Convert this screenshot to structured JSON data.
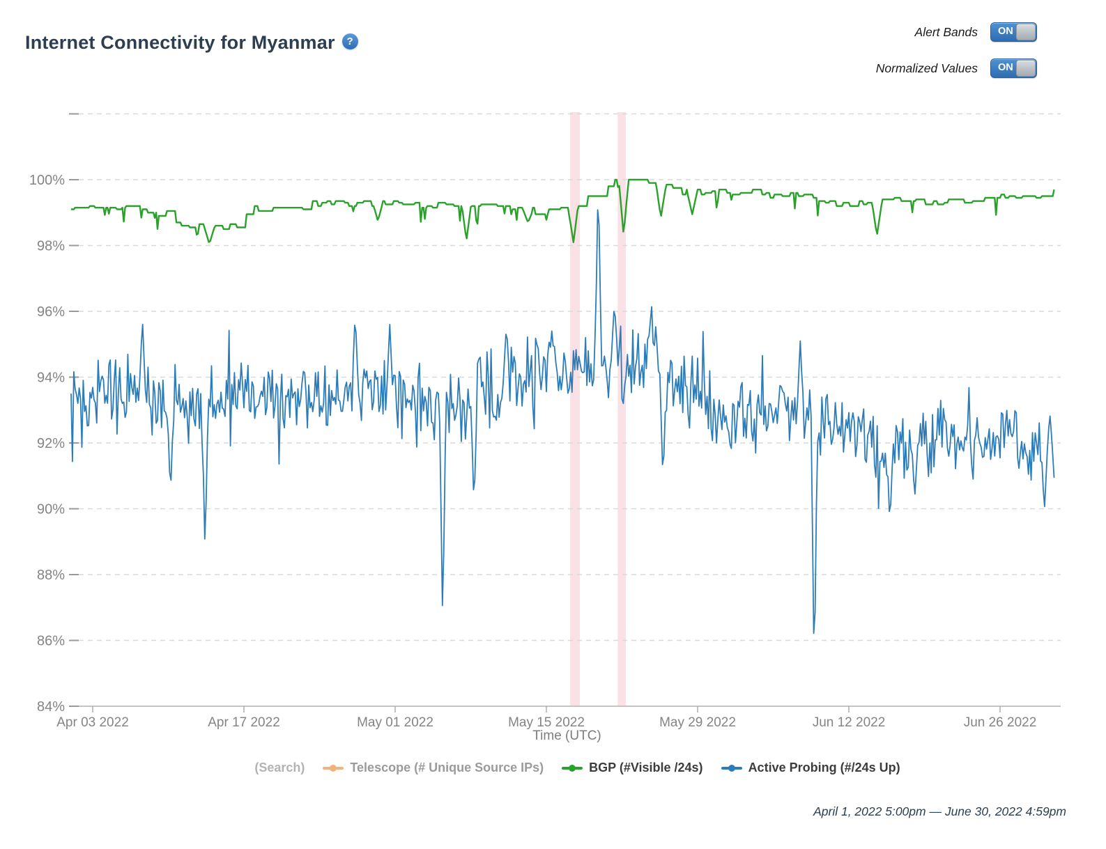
{
  "header": {
    "title": "Internet Connectivity for Myanmar",
    "help_icon": "question-mark-icon",
    "toggles": [
      {
        "label": "Alert Bands",
        "state": "ON"
      },
      {
        "label": "Normalized Values",
        "state": "ON"
      }
    ]
  },
  "chart_data": {
    "type": "line",
    "title": "Internet Connectivity for Myanmar",
    "xlabel": "Time (UTC)",
    "ylabel": "",
    "x_unit": "days since Apr 1 2022 5:00pm",
    "xlim_days": [
      0,
      91
    ],
    "ylim": [
      84,
      102.2
    ],
    "grid": "dashed-horizontal",
    "y_axis": {
      "unit": "%",
      "ticks": [
        100,
        98,
        96,
        94,
        92,
        90,
        88,
        86,
        84
      ],
      "grid_top_unlabeled": 102
    },
    "x_axis": {
      "title": "Time (UTC)",
      "ticks": [
        {
          "day": 2,
          "label": "Apr 03 2022"
        },
        {
          "day": 16,
          "label": "Apr 17 2022"
        },
        {
          "day": 30,
          "label": "May 01 2022"
        },
        {
          "day": 44,
          "label": "May 15 2022"
        },
        {
          "day": 58,
          "label": "May 29 2022"
        },
        {
          "day": 72,
          "label": "Jun 12 2022"
        },
        {
          "day": 86,
          "label": "Jun 26 2022"
        }
      ]
    },
    "alert_bands": [
      {
        "start_day": 46.2,
        "end_day": 47.1,
        "approx_date": "May 17 2022"
      },
      {
        "start_day": 50.6,
        "end_day": 51.35,
        "approx_date": "May 21 2022"
      }
    ],
    "series": [
      {
        "id": "bgp",
        "name": "BGP (#Visible /24s)",
        "color": "#2aa12b",
        "style": "steppy, quantized, occasional single-point dips",
        "baseline_keypoints": [
          [
            0,
            99.2
          ],
          [
            2,
            99.1
          ],
          [
            4,
            99.15
          ],
          [
            7,
            99.05
          ],
          [
            8,
            98.85
          ],
          [
            9,
            99.05
          ],
          [
            9.8,
            98.6
          ],
          [
            10.5,
            98.55
          ],
          [
            15.5,
            98.52
          ],
          [
            16.2,
            99.0
          ],
          [
            17,
            99.15
          ],
          [
            19,
            99.1
          ],
          [
            21,
            99.2
          ],
          [
            23,
            99.3
          ],
          [
            25,
            99.32
          ],
          [
            27,
            99.25
          ],
          [
            29,
            99.3
          ],
          [
            31,
            99.28
          ],
          [
            33,
            99.2
          ],
          [
            35,
            99.25
          ],
          [
            37,
            99.3
          ],
          [
            39,
            99.28
          ],
          [
            41,
            99.1
          ],
          [
            43,
            99.05
          ],
          [
            45,
            99.1
          ],
          [
            46,
            99.0
          ],
          [
            47.2,
            99.35
          ],
          [
            48,
            99.5
          ],
          [
            49,
            99.6
          ],
          [
            49.8,
            99.8
          ],
          [
            50.6,
            100.0
          ],
          [
            52,
            99.95
          ],
          [
            53.5,
            100.0
          ],
          [
            54.5,
            99.85
          ],
          [
            55.5,
            99.7
          ],
          [
            57,
            99.6
          ],
          [
            59,
            99.65
          ],
          [
            61,
            99.6
          ],
          [
            63,
            99.68
          ],
          [
            65,
            99.55
          ],
          [
            67,
            99.5
          ],
          [
            69,
            99.42
          ],
          [
            71,
            99.25
          ],
          [
            73,
            99.3
          ],
          [
            75,
            99.3
          ],
          [
            77,
            99.38
          ],
          [
            79,
            99.35
          ],
          [
            81,
            99.3
          ],
          [
            83,
            99.4
          ],
          [
            85,
            99.42
          ],
          [
            87,
            99.5
          ],
          [
            89,
            99.55
          ],
          [
            91,
            99.62
          ]
        ],
        "dip_outliers": [
          [
            12.8,
            98.05
          ],
          [
            28.4,
            98.75
          ],
          [
            36.6,
            98.15
          ],
          [
            42.3,
            98.7
          ],
          [
            46.5,
            98.1
          ],
          [
            51.15,
            98.33
          ],
          [
            54.6,
            98.85
          ],
          [
            57.5,
            98.95
          ],
          [
            74.6,
            98.3
          ]
        ]
      },
      {
        "id": "active-probing",
        "name": "Active Probing (#/24s Up)",
        "color": "#2b7cb9",
        "style": "dense noisy line, noise amplitude ~±1.3%",
        "baseline_keypoints": [
          [
            0,
            93.6
          ],
          [
            3,
            93.4
          ],
          [
            6,
            93.5
          ],
          [
            9,
            93.2
          ],
          [
            12,
            93.3
          ],
          [
            15,
            93.4
          ],
          [
            18,
            93.6
          ],
          [
            21,
            93.3
          ],
          [
            24,
            93.4
          ],
          [
            27,
            93.5
          ],
          [
            30,
            93.4
          ],
          [
            33,
            93.1
          ],
          [
            36,
            93.3
          ],
          [
            39,
            93.7
          ],
          [
            42,
            94.0
          ],
          [
            44,
            94.2
          ],
          [
            46,
            94.3
          ],
          [
            48,
            94.5
          ],
          [
            50,
            94.5
          ],
          [
            52,
            94.4
          ],
          [
            54,
            94.2
          ],
          [
            56,
            93.8
          ],
          [
            58,
            93.4
          ],
          [
            60,
            93.1
          ],
          [
            62,
            93.0
          ],
          [
            64,
            92.9
          ],
          [
            66,
            92.9
          ],
          [
            68,
            92.9
          ],
          [
            70,
            92.6
          ],
          [
            72,
            92.3
          ],
          [
            74,
            92.1
          ],
          [
            76,
            92.0
          ],
          [
            78,
            92.1
          ],
          [
            80,
            92.0
          ],
          [
            82,
            92.1
          ],
          [
            84,
            92.0
          ],
          [
            86,
            92.2
          ],
          [
            88,
            92.0
          ],
          [
            90,
            91.9
          ],
          [
            91,
            92.0
          ]
        ],
        "spike_outliers": [
          [
            6.6,
            95.8
          ],
          [
            9.2,
            90.4
          ],
          [
            12.4,
            88.7
          ],
          [
            26.3,
            96.0
          ],
          [
            29.5,
            95.6
          ],
          [
            34.4,
            86.5
          ],
          [
            37.3,
            90.0
          ],
          [
            40.3,
            95.6
          ],
          [
            44.5,
            95.4
          ],
          [
            48.8,
            100.0
          ],
          [
            50.3,
            96.3
          ],
          [
            53.7,
            96.2
          ],
          [
            54.8,
            90.8
          ],
          [
            67.5,
            95.1
          ],
          [
            68.8,
            84.9
          ],
          [
            75.8,
            89.5
          ],
          [
            78.1,
            90.3
          ],
          [
            90.1,
            89.9
          ]
        ]
      }
    ],
    "colors": {
      "grid": "#d9d9d9",
      "axis": "#c4c4c4",
      "tick_label": "#848484",
      "alert_band": "rgba(214,57,83,0.15)"
    }
  },
  "legend": {
    "items": [
      {
        "id": "search",
        "label": "(Search)",
        "marker": false,
        "color": "",
        "text_color": "#b3b3b3"
      },
      {
        "id": "telescope",
        "label": "Telescope (# Unique Source IPs)",
        "marker": true,
        "color": "#f2b27e",
        "text_color": "#9b9b9b"
      },
      {
        "id": "bgp",
        "label": "BGP (#Visible /24s)",
        "marker": true,
        "color": "#2aa12b",
        "text_color": "#3c3c3c"
      },
      {
        "id": "active-probing",
        "label": "Active Probing (#/24s Up)",
        "marker": true,
        "color": "#2b7cb9",
        "text_color": "#3c3c3c"
      }
    ]
  },
  "footer": {
    "date_range": "April 1, 2022 5:00pm — June 30, 2022 4:59pm"
  }
}
